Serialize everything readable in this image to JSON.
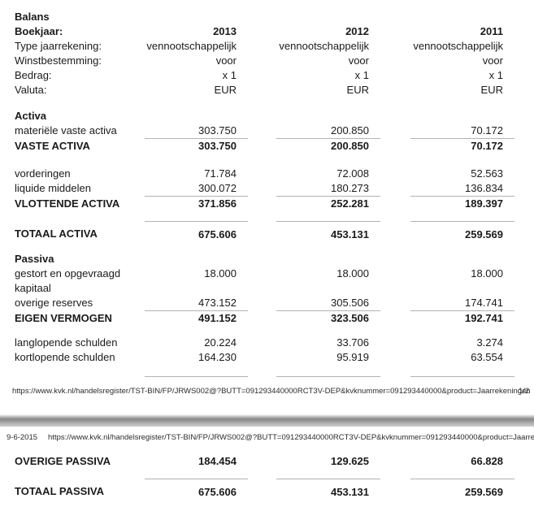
{
  "colors": {
    "text": "#1a1a1a",
    "rule_line": "#b3b3b3",
    "page_separator_mid": "#8a8a8a",
    "background": "#ffffff"
  },
  "balans": {
    "title": "Balans",
    "meta_rows": [
      {
        "label": "Boekjaar:",
        "c1": "2013",
        "c2": "2012",
        "c3": "2011"
      },
      {
        "label": "Type jaarrekening:",
        "c1": "vennootschappelijk",
        "c2": "vennootschappelijk",
        "c3": "vennootschappelijk"
      },
      {
        "label": "Winstbestemming:",
        "c1": "voor",
        "c2": "voor",
        "c3": "voor"
      },
      {
        "label": "Bedrag:",
        "c1": "x 1",
        "c2": "x 1",
        "c3": "x 1"
      },
      {
        "label": "Valuta:",
        "c1": "EUR",
        "c2": "EUR",
        "c3": "EUR"
      }
    ],
    "activa": {
      "heading": "Activa",
      "materiele_vaste_activa": {
        "label": "materiële vaste activa",
        "c1": "303.750",
        "c2": "200.850",
        "c3": "70.172"
      },
      "vaste_activa": {
        "label": "VASTE ACTIVA",
        "c1": "303.750",
        "c2": "200.850",
        "c3": "70.172"
      },
      "vorderingen": {
        "label": "vorderingen",
        "c1": "71.784",
        "c2": "72.008",
        "c3": "52.563"
      },
      "liquide_middelen": {
        "label": "liquide middelen",
        "c1": "300.072",
        "c2": "180.273",
        "c3": "136.834"
      },
      "vlottende_activa": {
        "label": "VLOTTENDE ACTIVA",
        "c1": "371.856",
        "c2": "252.281",
        "c3": "189.397"
      },
      "totaal_activa": {
        "label": "TOTAAL ACTIVA",
        "c1": "675.606",
        "c2": "453.131",
        "c3": "259.569"
      }
    },
    "passiva": {
      "heading": "Passiva",
      "gestort_kapitaal": {
        "label": "gestort en opgevraagd kapitaal",
        "c1": "18.000",
        "c2": "18.000",
        "c3": "18.000"
      },
      "overige_reserves": {
        "label": "overige reserves",
        "c1": "473.152",
        "c2": "305.506",
        "c3": "174.741"
      },
      "eigen_vermogen": {
        "label": "EIGEN VERMOGEN",
        "c1": "491.152",
        "c2": "323.506",
        "c3": "192.741"
      },
      "langlopende_schulden": {
        "label": "langlopende schulden",
        "c1": "20.224",
        "c2": "33.706",
        "c3": "3.274"
      },
      "kortlopende_schulden": {
        "label": "kortlopende schulden",
        "c1": "164.230",
        "c2": "95.919",
        "c3": "63.554"
      },
      "overige_passiva": {
        "label": "OVERIGE PASSIVA",
        "c1": "184.454",
        "c2": "129.625",
        "c3": "66.828"
      },
      "totaal_passiva": {
        "label": "TOTAAL PASSIVA",
        "c1": "675.606",
        "c2": "453.131",
        "c3": "259.569"
      }
    }
  },
  "page1_footer": {
    "url": "https://www.kvk.nl/handelsregister/TST-BIN/FP/JRWS002@?BUTT=091293440000RCT3V-DEP&kvknummer=091293440000&product=Jaarrekeningen",
    "page_indicator": "1/2"
  },
  "page2_header": {
    "date": "9-6-2015",
    "url": "https://www.kvk.nl/handelsregister/TST-BIN/FP/JRWS002@?BUTT=091293440000RCT3V-DEP&kvknummer=091293440000&product=Jaarreken..."
  }
}
